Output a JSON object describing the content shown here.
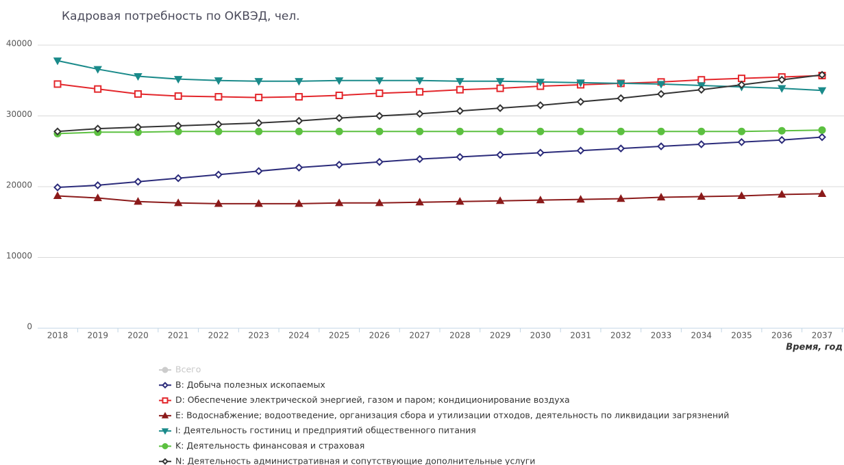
{
  "chart_data": {
    "type": "line",
    "title": "Кадровая потребность по ОКВЭД, чел.",
    "x_label": "Время, год",
    "categories": [
      "2018",
      "2019",
      "2020",
      "2021",
      "2022",
      "2023",
      "2024",
      "2025",
      "2026",
      "2027",
      "2028",
      "2029",
      "2030",
      "2031",
      "2032",
      "2033",
      "2034",
      "2035",
      "2036",
      "2037"
    ],
    "ylim": [
      0,
      40000
    ],
    "yticks": [
      0,
      10000,
      20000,
      30000,
      40000
    ],
    "grid": true,
    "series": [
      {
        "name": "Всего",
        "color": "#cccccc",
        "marker": "circle",
        "visible": false
      },
      {
        "name": "B: Добыча полезных ископаемых",
        "color": "#2b2b7a",
        "marker": "diamond",
        "values": [
          19900,
          20200,
          20700,
          21200,
          21700,
          22200,
          22700,
          23100,
          23500,
          23900,
          24200,
          24500,
          24800,
          25100,
          25400,
          25700,
          26000,
          26300,
          26600,
          27000
        ]
      },
      {
        "name": "D: Обеспечение электрической энергией, газом и паром; кондиционирование воздуха",
        "color": "#e3262b",
        "marker": "square",
        "values": [
          34500,
          33800,
          33100,
          32800,
          32700,
          32600,
          32700,
          32900,
          33200,
          33400,
          33700,
          33900,
          34200,
          34400,
          34600,
          34800,
          35100,
          35300,
          35500,
          35700
        ]
      },
      {
        "name": "E: Водоснабжение; водоотведение, организация сбора и утилизации отходов, деятельность по ликвидации загрязнений",
        "color": "#8b1a1a",
        "marker": "triangle",
        "values": [
          18700,
          18400,
          17900,
          17700,
          17600,
          17600,
          17600,
          17700,
          17700,
          17800,
          17900,
          18000,
          18100,
          18200,
          18300,
          18500,
          18600,
          18700,
          18900,
          19000
        ]
      },
      {
        "name": "I: Деятельность гостиниц и предприятий общественного питания",
        "color": "#1a8a8a",
        "marker": "triangle-down",
        "values": [
          37800,
          36600,
          35600,
          35200,
          35000,
          34900,
          34900,
          35000,
          35000,
          35000,
          34900,
          34900,
          34800,
          34700,
          34600,
          34500,
          34300,
          34100,
          33900,
          33600
        ]
      },
      {
        "name": "K: Деятельность финансовая и страховая",
        "color": "#5cc040",
        "marker": "circle",
        "values": [
          27500,
          27700,
          27700,
          27800,
          27800,
          27800,
          27800,
          27800,
          27800,
          27800,
          27800,
          27800,
          27800,
          27800,
          27800,
          27800,
          27800,
          27800,
          27900,
          28000
        ]
      },
      {
        "name": "N: Деятельность административная и сопутствующие дополнительные услуги",
        "color": "#333333",
        "marker": "diamond",
        "values": [
          27800,
          28200,
          28400,
          28600,
          28800,
          29000,
          29300,
          29700,
          30000,
          30300,
          30700,
          31100,
          31500,
          32000,
          32500,
          33100,
          33700,
          34400,
          35100,
          35800
        ]
      }
    ]
  }
}
